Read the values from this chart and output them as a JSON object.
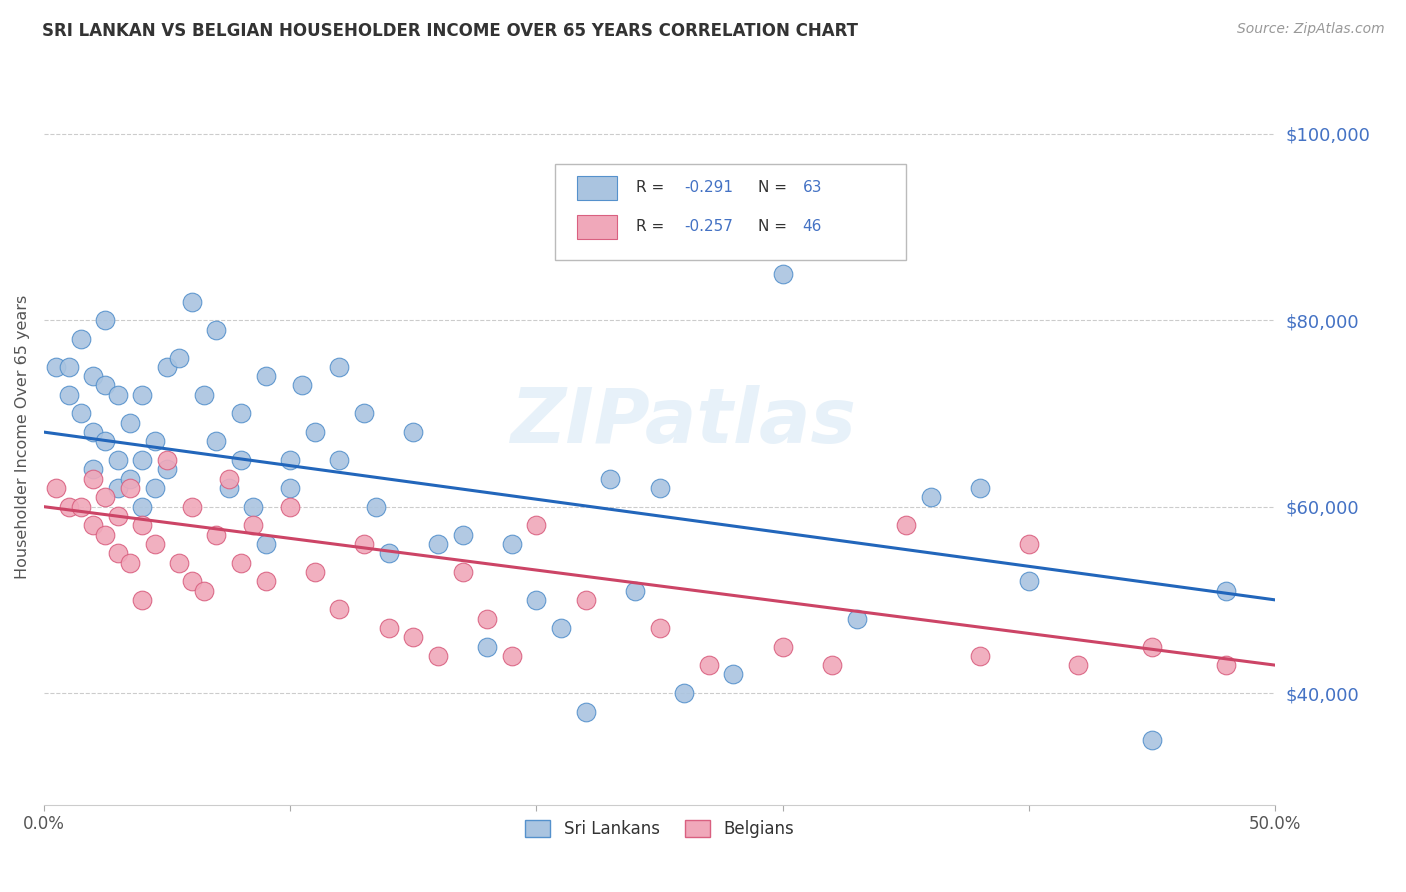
{
  "title": "SRI LANKAN VS BELGIAN HOUSEHOLDER INCOME OVER 65 YEARS CORRELATION CHART",
  "source": "Source: ZipAtlas.com",
  "ylabel": "Householder Income Over 65 years",
  "xmin": 0.0,
  "xmax": 0.5,
  "ymin": 28000,
  "ymax": 107000,
  "yticks": [
    40000,
    60000,
    80000,
    100000
  ],
  "ytick_labels": [
    "$40,000",
    "$60,000",
    "$80,000",
    "$100,000"
  ],
  "xticks": [
    0.0,
    0.1,
    0.2,
    0.3,
    0.4,
    0.5
  ],
  "xtick_labels": [
    "0.0%",
    "",
    "",
    "",
    "",
    "50.0%"
  ],
  "sri_lankan_fill": "#aac4e0",
  "sri_lankan_edge": "#5591cc",
  "belgian_fill": "#f0a8ba",
  "belgian_edge": "#d96080",
  "sri_lankan_line_color": "#2266bb",
  "belgian_line_color": "#cc4466",
  "R_sri": -0.291,
  "N_sri": 63,
  "R_bel": -0.257,
  "N_bel": 46,
  "background_color": "#ffffff",
  "grid_color": "#cccccc",
  "title_color": "#333333",
  "right_tick_color": "#4472c4",
  "watermark": "ZIPatlas",
  "sri_line_x0": 0.0,
  "sri_line_y0": 68000,
  "sri_line_x1": 0.5,
  "sri_line_y1": 50000,
  "bel_line_x0": 0.0,
  "bel_line_y0": 60000,
  "bel_line_x1": 0.5,
  "bel_line_y1": 43000,
  "sri_lankans_x": [
    0.005,
    0.01,
    0.01,
    0.015,
    0.015,
    0.02,
    0.02,
    0.02,
    0.025,
    0.025,
    0.025,
    0.03,
    0.03,
    0.03,
    0.035,
    0.035,
    0.04,
    0.04,
    0.04,
    0.045,
    0.045,
    0.05,
    0.05,
    0.055,
    0.06,
    0.065,
    0.07,
    0.07,
    0.075,
    0.08,
    0.08,
    0.085,
    0.09,
    0.09,
    0.1,
    0.1,
    0.105,
    0.11,
    0.12,
    0.12,
    0.13,
    0.135,
    0.14,
    0.15,
    0.16,
    0.17,
    0.18,
    0.19,
    0.2,
    0.21,
    0.22,
    0.23,
    0.24,
    0.25,
    0.26,
    0.28,
    0.3,
    0.33,
    0.36,
    0.38,
    0.4,
    0.45,
    0.48
  ],
  "sri_lankans_y": [
    75000,
    75000,
    72000,
    78000,
    70000,
    74000,
    68000,
    64000,
    80000,
    73000,
    67000,
    65000,
    72000,
    62000,
    63000,
    69000,
    72000,
    65000,
    60000,
    67000,
    62000,
    75000,
    64000,
    76000,
    82000,
    72000,
    79000,
    67000,
    62000,
    70000,
    65000,
    60000,
    74000,
    56000,
    65000,
    62000,
    73000,
    68000,
    75000,
    65000,
    70000,
    60000,
    55000,
    68000,
    56000,
    57000,
    45000,
    56000,
    50000,
    47000,
    38000,
    63000,
    51000,
    62000,
    40000,
    42000,
    85000,
    48000,
    61000,
    62000,
    52000,
    35000,
    51000
  ],
  "belgians_x": [
    0.005,
    0.01,
    0.015,
    0.02,
    0.02,
    0.025,
    0.025,
    0.03,
    0.03,
    0.035,
    0.035,
    0.04,
    0.04,
    0.045,
    0.05,
    0.055,
    0.06,
    0.06,
    0.065,
    0.07,
    0.075,
    0.08,
    0.085,
    0.09,
    0.1,
    0.11,
    0.12,
    0.13,
    0.14,
    0.15,
    0.16,
    0.17,
    0.18,
    0.19,
    0.2,
    0.22,
    0.25,
    0.27,
    0.3,
    0.32,
    0.35,
    0.38,
    0.4,
    0.42,
    0.45,
    0.48
  ],
  "belgians_y": [
    62000,
    60000,
    60000,
    63000,
    58000,
    61000,
    57000,
    59000,
    55000,
    62000,
    54000,
    58000,
    50000,
    56000,
    65000,
    54000,
    60000,
    52000,
    51000,
    57000,
    63000,
    54000,
    58000,
    52000,
    60000,
    53000,
    49000,
    56000,
    47000,
    46000,
    44000,
    53000,
    48000,
    44000,
    58000,
    50000,
    47000,
    43000,
    45000,
    43000,
    58000,
    44000,
    56000,
    43000,
    45000,
    43000
  ]
}
